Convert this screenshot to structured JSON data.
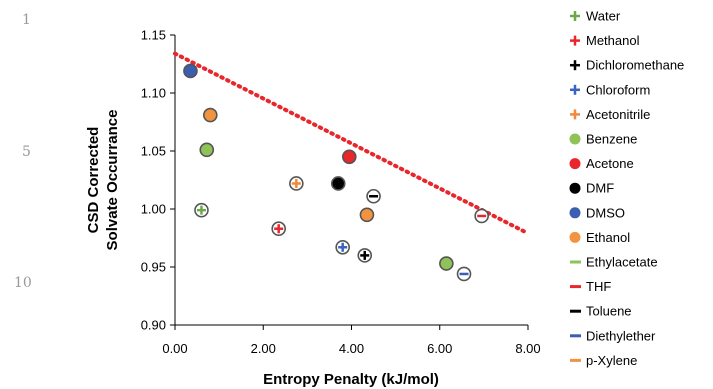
{
  "line_numbers": [
    "1",
    "5",
    "10"
  ],
  "chart_data": {
    "type": "scatter",
    "title": "",
    "xlabel": "Entropy Penalty (kJ/mol)",
    "ylabel_lines": [
      "CSD Corrected",
      "Solvate Occurrance"
    ],
    "xlim": [
      0,
      8
    ],
    "ylim": [
      0.9,
      1.15
    ],
    "x_ticks": [
      "0.00",
      "2.00",
      "4.00",
      "6.00",
      "8.00"
    ],
    "y_ticks": [
      "0.90",
      "0.95",
      "1.00",
      "1.05",
      "1.10",
      "1.15"
    ],
    "grid": false,
    "legend_position": "right",
    "trendline": {
      "style": "dotted",
      "color": "#e8262b",
      "x": [
        0,
        8
      ],
      "y": [
        1.134,
        0.979
      ]
    },
    "series": [
      {
        "name": "Water",
        "marker": "plus",
        "color": "#6fa84a",
        "x": [
          0.6
        ],
        "y": [
          0.999
        ]
      },
      {
        "name": "Methanol",
        "marker": "plus",
        "color": "#e8262b",
        "x": [
          2.35
        ],
        "y": [
          0.983
        ]
      },
      {
        "name": "Dichloromethane",
        "marker": "plus",
        "color": "#000000",
        "x": [
          4.3
        ],
        "y": [
          0.96
        ]
      },
      {
        "name": "Chloroform",
        "marker": "plus",
        "color": "#3a62c0",
        "x": [
          3.8
        ],
        "y": [
          0.967
        ]
      },
      {
        "name": "Acetonitrile",
        "marker": "plus",
        "color": "#f2883a",
        "x": [
          2.75
        ],
        "y": [
          1.022
        ]
      },
      {
        "name": "Benzene",
        "marker": "circle",
        "color": "#8fc258",
        "x": [
          0.72,
          6.15
        ],
        "y": [
          1.051,
          0.953
        ]
      },
      {
        "name": "Acetone",
        "marker": "circle",
        "color": "#e8262b",
        "x": [
          3.95
        ],
        "y": [
          1.045
        ]
      },
      {
        "name": "DMF",
        "marker": "circle",
        "color": "#000000",
        "x": [
          3.7
        ],
        "y": [
          1.022
        ]
      },
      {
        "name": "DMSO",
        "marker": "circle",
        "color": "#3a5fb0",
        "x": [
          0.35
        ],
        "y": [
          1.119
        ]
      },
      {
        "name": "Ethanol",
        "marker": "circle",
        "color": "#f2933f",
        "x": [
          0.8,
          4.35
        ],
        "y": [
          1.081,
          0.995
        ]
      },
      {
        "name": "Ethylacetate",
        "marker": "minus",
        "color": "#8fc258",
        "x": [],
        "y": []
      },
      {
        "name": "THF",
        "marker": "minus",
        "color": "#e8262b",
        "x": [
          6.95
        ],
        "y": [
          0.994
        ]
      },
      {
        "name": "Toluene",
        "marker": "minus",
        "color": "#000000",
        "x": [
          4.5
        ],
        "y": [
          1.011
        ]
      },
      {
        "name": "Diethylether",
        "marker": "minus",
        "color": "#3a5fb0",
        "x": [
          6.55
        ],
        "y": [
          0.944
        ]
      },
      {
        "name": "p-Xylene",
        "marker": "minus",
        "color": "#f2933f",
        "x": [],
        "y": []
      }
    ]
  }
}
